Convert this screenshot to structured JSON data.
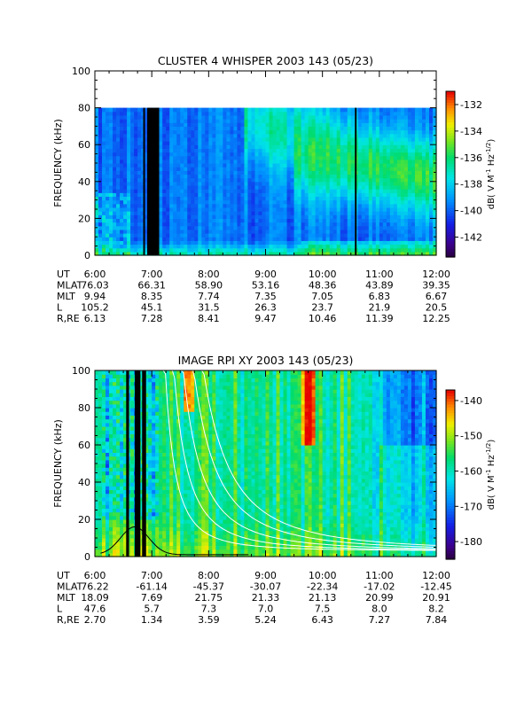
{
  "chart_data": [
    {
      "type": "heatmap",
      "title": "CLUSTER 4 WHISPER 2003 143 (05/23)",
      "ylabel": "FREQUENCY (kHz)",
      "colorbar_label": "dB( V M⁻¹ Hz⁻¹ᐟ²)",
      "colorbar_label_parts": {
        "base": "dB( V M",
        "exp1": "-1",
        "mid": " Hz",
        "exp2": "-1/2",
        "end": ")"
      },
      "ylim": [
        0,
        100
      ],
      "data_ylim": [
        0,
        80
      ],
      "yticks": [
        "0",
        "20",
        "40",
        "60",
        "80",
        "100"
      ],
      "colorbar_range": [
        -143.5,
        -131
      ],
      "colorbar_ticks": [
        "-132",
        "-134",
        "-136",
        "-138",
        "-140",
        "-142"
      ],
      "xticks": [
        "6:00",
        "7:00",
        "8:00",
        "9:00",
        "10:00",
        "11:00",
        "12:00"
      ],
      "data_gaps_hours": [
        [
          6.85,
          6.88
        ],
        [
          6.92,
          7.13
        ],
        [
          10.57,
          10.6
        ]
      ],
      "ephemeris": [
        {
          "label": "UT",
          "values": [
            "6:00",
            "7:00",
            "8:00",
            "9:00",
            "10:00",
            "11:00",
            "12:00"
          ]
        },
        {
          "label": "MLAT",
          "values": [
            "76.03",
            "66.31",
            "58.90",
            "53.16",
            "48.36",
            "43.89",
            "39.35"
          ]
        },
        {
          "label": "MLT",
          "values": [
            "9.94",
            "8.35",
            "7.74",
            "7.35",
            "7.05",
            "6.83",
            "6.67"
          ]
        },
        {
          "label": "L",
          "values": [
            "105.2",
            "45.1",
            "31.5",
            "26.3",
            "23.7",
            "21.9",
            "20.5"
          ]
        },
        {
          "label": "R,RE",
          "values": [
            "6.13",
            "7.28",
            "8.41",
            "9.47",
            "10.46",
            "11.39",
            "12.25"
          ]
        }
      ]
    },
    {
      "type": "heatmap",
      "title": "IMAGE RPI XY 2003 143 (05/23)",
      "ylabel": "FREQUENCY (kHz)",
      "colorbar_label_parts": {
        "base": "dB( V M",
        "exp1": "-1",
        "mid": " Hz",
        "exp2": "-1/2",
        "end": ")"
      },
      "ylim": [
        0,
        100
      ],
      "yticks": [
        "0",
        "20",
        "40",
        "60",
        "80",
        "100"
      ],
      "colorbar_range": [
        -185,
        -137
      ],
      "colorbar_ticks": [
        "-140",
        "-150",
        "-160",
        "-170",
        "-180"
      ],
      "xticks": [
        "6:00",
        "7:00",
        "8:00",
        "9:00",
        "10:00",
        "11:00",
        "12:00"
      ],
      "data_gaps_hours": [
        [
          6.55,
          6.6
        ],
        [
          6.7,
          6.8
        ],
        [
          6.83,
          6.9
        ]
      ],
      "white_curves_k": [
        12,
        25,
        45,
        75,
        110
      ],
      "ephemeris": [
        {
          "label": "UT",
          "values": [
            "6:00",
            "7:00",
            "8:00",
            "9:00",
            "10:00",
            "11:00",
            "12:00"
          ]
        },
        {
          "label": "MLAT",
          "values": [
            "76.22",
            "-61.14",
            "-45.37",
            "-30.07",
            "-22.34",
            "-17.02",
            "-12.45"
          ]
        },
        {
          "label": "MLT",
          "values": [
            "18.09",
            "7.69",
            "21.75",
            "21.33",
            "21.13",
            "20.99",
            "20.91"
          ]
        },
        {
          "label": "L",
          "values": [
            "47.6",
            "5.7",
            "7.3",
            "7.0",
            "7.5",
            "8.0",
            "8.2"
          ]
        },
        {
          "label": "R,RE",
          "values": [
            "2.70",
            "1.34",
            "3.59",
            "5.24",
            "6.43",
            "7.27",
            "7.84"
          ]
        }
      ]
    }
  ]
}
